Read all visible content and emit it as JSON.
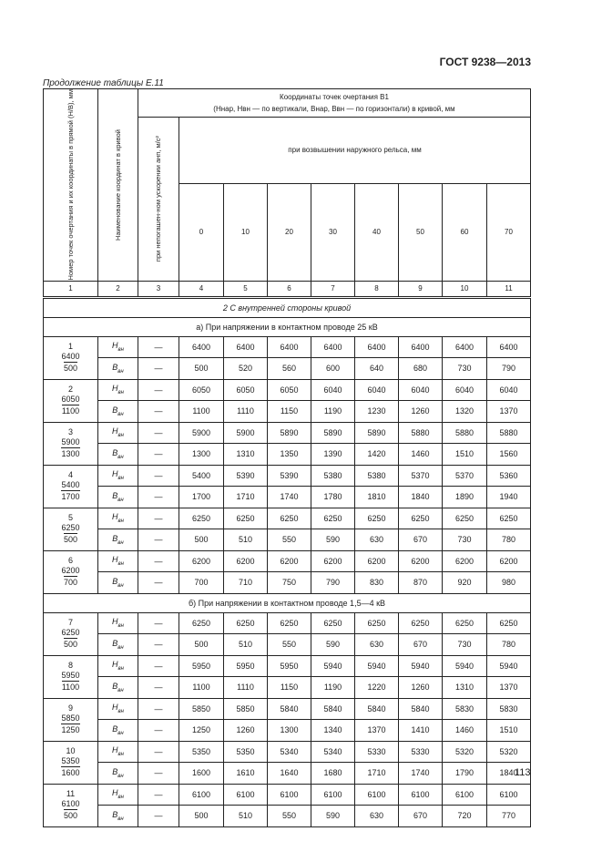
{
  "doc_code": "ГОСТ 9238—2013",
  "caption": "Продолжение таблицы Е.11",
  "page_number": "113",
  "header": {
    "col1": "Номер точек очертания и их координаты в прямой (H/B), мм",
    "col2": "Наименование координат в кривой",
    "col3": "при непогашен-ном ускорении aнп, м/с²",
    "group_title_line1": "Координаты точек очертания В1",
    "group_title_line2": "(Hнар, Hвн — по вертикали, Bнар, Bвн — по горизонтали) в кривой, мм",
    "subgroup": "при возвышении наружного рельса, мм",
    "elevations": [
      "0",
      "10",
      "20",
      "30",
      "40",
      "50",
      "60",
      "70"
    ],
    "col_numbers": [
      "1",
      "2",
      "3",
      "4",
      "5",
      "6",
      "7",
      "8",
      "9",
      "10",
      "11"
    ]
  },
  "section_title": "2 С внутренней стороны кривой",
  "sections": [
    {
      "title": "а) При напряжении в контактном проводе 25 кВ",
      "points": [
        {
          "num": "1",
          "h": "6400",
          "b": "500",
          "H": [
            "6400",
            "6400",
            "6400",
            "6400",
            "6400",
            "6400",
            "6400",
            "6400"
          ],
          "B": [
            "500",
            "520",
            "560",
            "600",
            "640",
            "680",
            "730",
            "790"
          ]
        },
        {
          "num": "2",
          "h": "6050",
          "b": "1100",
          "H": [
            "6050",
            "6050",
            "6050",
            "6040",
            "6040",
            "6040",
            "6040",
            "6040"
          ],
          "B": [
            "1100",
            "1110",
            "1150",
            "1190",
            "1230",
            "1260",
            "1320",
            "1370"
          ]
        },
        {
          "num": "3",
          "h": "5900",
          "b": "1300",
          "H": [
            "5900",
            "5900",
            "5890",
            "5890",
            "5890",
            "5880",
            "5880",
            "5880"
          ],
          "B": [
            "1300",
            "1310",
            "1350",
            "1390",
            "1420",
            "1460",
            "1510",
            "1560"
          ]
        },
        {
          "num": "4",
          "h": "5400",
          "b": "1700",
          "H": [
            "5400",
            "5390",
            "5390",
            "5380",
            "5380",
            "5370",
            "5370",
            "5360"
          ],
          "B": [
            "1700",
            "1710",
            "1740",
            "1780",
            "1810",
            "1840",
            "1890",
            "1940"
          ]
        },
        {
          "num": "5",
          "h": "6250",
          "b": "500",
          "H": [
            "6250",
            "6250",
            "6250",
            "6250",
            "6250",
            "6250",
            "6250",
            "6250"
          ],
          "B": [
            "500",
            "510",
            "550",
            "590",
            "630",
            "670",
            "730",
            "780"
          ]
        },
        {
          "num": "6",
          "h": "6200",
          "b": "700",
          "H": [
            "6200",
            "6200",
            "6200",
            "6200",
            "6200",
            "6200",
            "6200",
            "6200"
          ],
          "B": [
            "700",
            "710",
            "750",
            "790",
            "830",
            "870",
            "920",
            "980"
          ]
        }
      ]
    },
    {
      "title": "б) При напряжении в контактном проводе 1,5—4 кВ",
      "points": [
        {
          "num": "7",
          "h": "6250",
          "b": "500",
          "H": [
            "6250",
            "6250",
            "6250",
            "6250",
            "6250",
            "6250",
            "6250",
            "6250"
          ],
          "B": [
            "500",
            "510",
            "550",
            "590",
            "630",
            "670",
            "730",
            "780"
          ]
        },
        {
          "num": "8",
          "h": "5950",
          "b": "1100",
          "H": [
            "5950",
            "5950",
            "5950",
            "5940",
            "5940",
            "5940",
            "5940",
            "5940"
          ],
          "B": [
            "1100",
            "1110",
            "1150",
            "1190",
            "1220",
            "1260",
            "1310",
            "1370"
          ]
        },
        {
          "num": "9",
          "h": "5850",
          "b": "1250",
          "H": [
            "5850",
            "5850",
            "5840",
            "5840",
            "5840",
            "5840",
            "5830",
            "5830"
          ],
          "B": [
            "1250",
            "1260",
            "1300",
            "1340",
            "1370",
            "1410",
            "1460",
            "1510"
          ]
        },
        {
          "num": "10",
          "h": "5350",
          "b": "1600",
          "H": [
            "5350",
            "5350",
            "5340",
            "5340",
            "5330",
            "5330",
            "5320",
            "5320"
          ],
          "B": [
            "1600",
            "1610",
            "1640",
            "1680",
            "1710",
            "1740",
            "1790",
            "1840"
          ]
        },
        {
          "num": "11",
          "h": "6100",
          "b": "500",
          "H": [
            "6100",
            "6100",
            "6100",
            "6100",
            "6100",
            "6100",
            "6100",
            "6100"
          ],
          "B": [
            "500",
            "510",
            "550",
            "590",
            "630",
            "670",
            "720",
            "770"
          ]
        }
      ]
    }
  ],
  "labels": {
    "h_label": "H",
    "b_label": "B",
    "sub": "вн",
    "dash": "—"
  }
}
